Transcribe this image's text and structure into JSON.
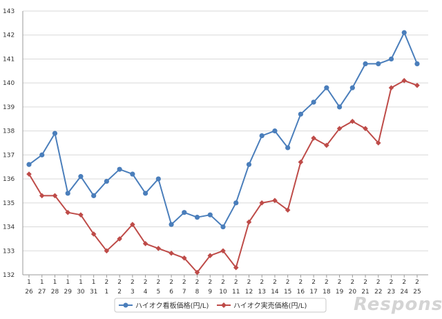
{
  "chart_data": {
    "type": "line",
    "title": "",
    "xlabel": "",
    "ylabel": "",
    "ylim": [
      132,
      143
    ],
    "yticks": [
      "132",
      "133",
      "134",
      "135",
      "136",
      "137",
      "138",
      "139",
      "140",
      "141",
      "142",
      "143"
    ],
    "x_month": [
      "1",
      "1",
      "1",
      "1",
      "1",
      "1",
      "2",
      "2",
      "2",
      "2",
      "2",
      "2",
      "2",
      "2",
      "2",
      "2",
      "2",
      "2",
      "2",
      "2",
      "2",
      "2",
      "2",
      "2",
      "2",
      "2",
      "2",
      "2",
      "2",
      "2",
      "2"
    ],
    "x_day": [
      "26",
      "27",
      "28",
      "29",
      "30",
      "31",
      "1",
      "2",
      "3",
      "4",
      "5",
      "6",
      "7",
      "8",
      "9",
      "10",
      "11",
      "12",
      "13",
      "14",
      "15",
      "16",
      "17",
      "18",
      "19",
      "20",
      "21",
      "22",
      "23",
      "24",
      "25"
    ],
    "grid": true,
    "legend_position": "bottom",
    "series": [
      {
        "name": "ハイオク看板価格(円/L)",
        "color": "#4a7ebb",
        "marker": "circle",
        "values": [
          136.6,
          137.0,
          137.9,
          135.4,
          136.1,
          135.3,
          135.9,
          136.4,
          136.2,
          135.4,
          136.0,
          134.1,
          134.6,
          134.4,
          134.5,
          134.0,
          135.0,
          136.6,
          137.8,
          138.0,
          137.3,
          138.7,
          139.2,
          139.8,
          139.0,
          139.8,
          140.8,
          140.8,
          141.0,
          142.1,
          140.8
        ]
      },
      {
        "name": "ハイオク実売価格(円/L)",
        "color": "#be4b48",
        "marker": "diamond",
        "values": [
          136.2,
          135.3,
          135.3,
          134.6,
          134.5,
          133.7,
          133.0,
          133.5,
          134.1,
          133.3,
          133.1,
          132.9,
          132.7,
          132.1,
          132.8,
          133.0,
          132.3,
          134.2,
          135.0,
          135.1,
          134.7,
          136.7,
          137.7,
          137.4,
          138.1,
          138.4,
          138.1,
          137.5,
          139.8,
          140.1,
          139.9
        ]
      }
    ]
  },
  "watermark_text": "Response."
}
